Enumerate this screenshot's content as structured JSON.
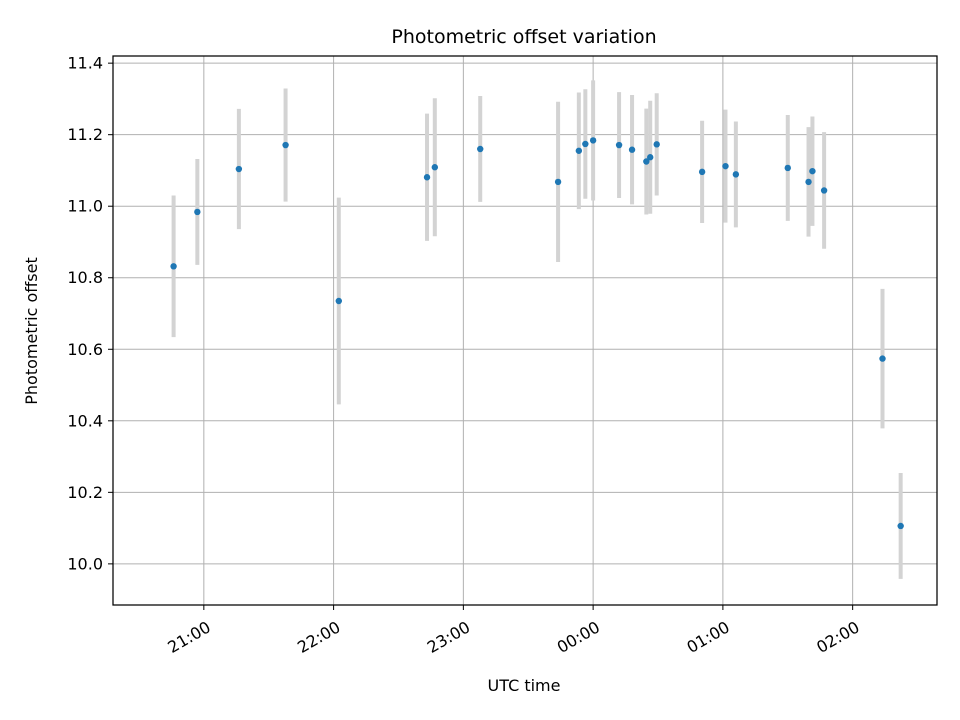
{
  "chart_data": {
    "type": "scatter",
    "title": "Photometric offset variation",
    "xlabel": "UTC time",
    "ylabel": "Photometric offset",
    "x_unit": "UTC time (hour of day; values past 24 fall on the next day)",
    "xlim": [
      20.3,
      26.65
    ],
    "ylim": [
      9.885,
      11.42
    ],
    "x_ticks": [
      {
        "value": 21,
        "label": "21:00"
      },
      {
        "value": 22,
        "label": "22:00"
      },
      {
        "value": 23,
        "label": "23:00"
      },
      {
        "value": 24,
        "label": "00:00"
      },
      {
        "value": 25,
        "label": "01:00"
      },
      {
        "value": 26,
        "label": "02:00"
      }
    ],
    "y_ticks": [
      {
        "value": 10.0,
        "label": "10.0"
      },
      {
        "value": 10.2,
        "label": "10.2"
      },
      {
        "value": 10.4,
        "label": "10.4"
      },
      {
        "value": 10.6,
        "label": "10.6"
      },
      {
        "value": 10.8,
        "label": "10.8"
      },
      {
        "value": 11.0,
        "label": "11.0"
      },
      {
        "value": 11.2,
        "label": "11.2"
      },
      {
        "value": 11.4,
        "label": "11.4"
      }
    ],
    "grid": true,
    "colors": {
      "points": "#1f77b4",
      "errorbars": "#d3d3d3",
      "grid": "#b0b0b0"
    },
    "series": [
      {
        "points": [
          {
            "x": 20.767,
            "y": 10.832,
            "err": 0.198
          },
          {
            "x": 20.95,
            "y": 10.984,
            "err": 0.148
          },
          {
            "x": 21.27,
            "y": 11.104,
            "err": 0.168
          },
          {
            "x": 21.63,
            "y": 11.171,
            "err": 0.158
          },
          {
            "x": 22.04,
            "y": 10.735,
            "err": 0.289
          },
          {
            "x": 22.72,
            "y": 11.081,
            "err": 0.178
          },
          {
            "x": 22.78,
            "y": 11.109,
            "err": 0.193
          },
          {
            "x": 23.13,
            "y": 11.16,
            "err": 0.148
          },
          {
            "x": 23.73,
            "y": 11.068,
            "err": 0.224
          },
          {
            "x": 23.89,
            "y": 11.155,
            "err": 0.163
          },
          {
            "x": 23.94,
            "y": 11.174,
            "err": 0.153
          },
          {
            "x": 24.0,
            "y": 11.184,
            "err": 0.168
          },
          {
            "x": 24.2,
            "y": 11.171,
            "err": 0.148
          },
          {
            "x": 24.3,
            "y": 11.158,
            "err": 0.153
          },
          {
            "x": 24.41,
            "y": 11.125,
            "err": 0.148
          },
          {
            "x": 24.44,
            "y": 11.137,
            "err": 0.158
          },
          {
            "x": 24.49,
            "y": 11.173,
            "err": 0.143
          },
          {
            "x": 24.84,
            "y": 11.096,
            "err": 0.143
          },
          {
            "x": 25.02,
            "y": 11.112,
            "err": 0.158
          },
          {
            "x": 25.1,
            "y": 11.089,
            "err": 0.148
          },
          {
            "x": 25.5,
            "y": 11.107,
            "err": 0.148
          },
          {
            "x": 25.66,
            "y": 11.068,
            "err": 0.153
          },
          {
            "x": 25.69,
            "y": 11.098,
            "err": 0.153
          },
          {
            "x": 25.78,
            "y": 11.044,
            "err": 0.163
          },
          {
            "x": 26.23,
            "y": 10.574,
            "err": 0.195
          },
          {
            "x": 26.37,
            "y": 10.106,
            "err": 0.148
          }
        ]
      }
    ]
  }
}
